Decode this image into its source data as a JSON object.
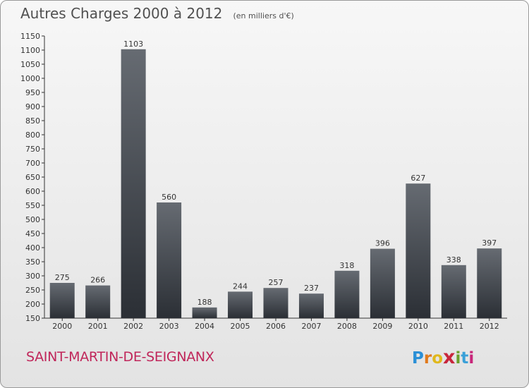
{
  "header": {
    "title": "Autres Charges 2000 à 2012",
    "subtitle": "(en milliers d'€)"
  },
  "footer": {
    "commune": "SAINT-MARTIN-DE-SEIGNANX",
    "logo_letters": [
      "P",
      "r",
      "o",
      "x",
      "i",
      "t",
      "i"
    ],
    "logo_colors": [
      "#2a8fd6",
      "#e07a1c",
      "#e0b81c",
      "#c8263c",
      "#6aa02a",
      "#3aa0d8",
      "#c8267a"
    ]
  },
  "colors": {
    "bar_top": "#666b72",
    "bar_bottom": "#2b2f35",
    "axis": "#333333",
    "text": "#333333",
    "commune": "#c0265a"
  },
  "chart_data": {
    "type": "bar",
    "categories": [
      "2000",
      "2001",
      "2002",
      "2003",
      "2004",
      "2005",
      "2006",
      "2007",
      "2008",
      "2009",
      "2010",
      "2011",
      "2012"
    ],
    "values": [
      275,
      266,
      1103,
      560,
      188,
      244,
      257,
      237,
      318,
      396,
      627,
      338,
      397
    ],
    "title": "Autres Charges 2000 à 2012",
    "subtitle": "(en milliers d'€)",
    "xlabel": "",
    "ylabel": "",
    "ylim": [
      150,
      1150
    ],
    "yticks": [
      150,
      200,
      250,
      300,
      350,
      400,
      450,
      500,
      550,
      600,
      650,
      700,
      750,
      800,
      850,
      900,
      950,
      1000,
      1050,
      1100,
      1150
    ],
    "grid": false,
    "legend": "none",
    "data_labels": true
  }
}
